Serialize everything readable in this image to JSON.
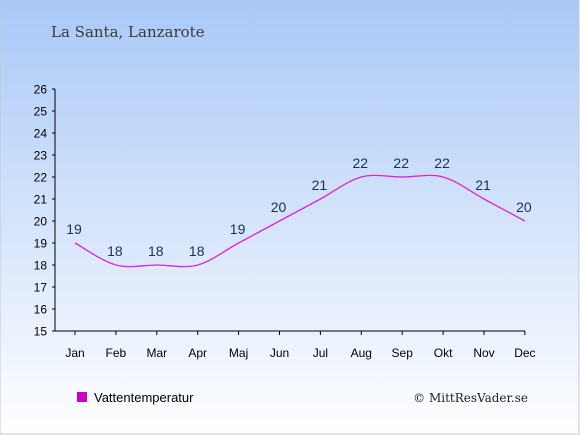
{
  "header": {
    "location": "La Santa, Lanzarote"
  },
  "legend": {
    "label": "Vattentemperatur",
    "color": "#cc00cc"
  },
  "footer": {
    "credit": "© MittResVader.se"
  },
  "colors": {
    "background_top": "#a9c8f7",
    "background_bottom": "#ffffff",
    "line": "#dd22dd",
    "label_text": "#1a2f57",
    "axis": "#000000"
  },
  "chart_data": {
    "type": "line",
    "categories": [
      "Jan",
      "Feb",
      "Mar",
      "Apr",
      "Maj",
      "Jun",
      "Jul",
      "Aug",
      "Sep",
      "Okt",
      "Nov",
      "Dec"
    ],
    "series": [
      {
        "name": "Vattentemperatur",
        "values": [
          19,
          18,
          18,
          18,
          19,
          20,
          21,
          22,
          22,
          22,
          21,
          20
        ]
      }
    ],
    "yticks": [
      15,
      16,
      17,
      18,
      19,
      20,
      21,
      22,
      23,
      24,
      25,
      26
    ],
    "ylim": [
      15,
      26
    ],
    "grid": false,
    "legend_position": "bottom-left"
  }
}
